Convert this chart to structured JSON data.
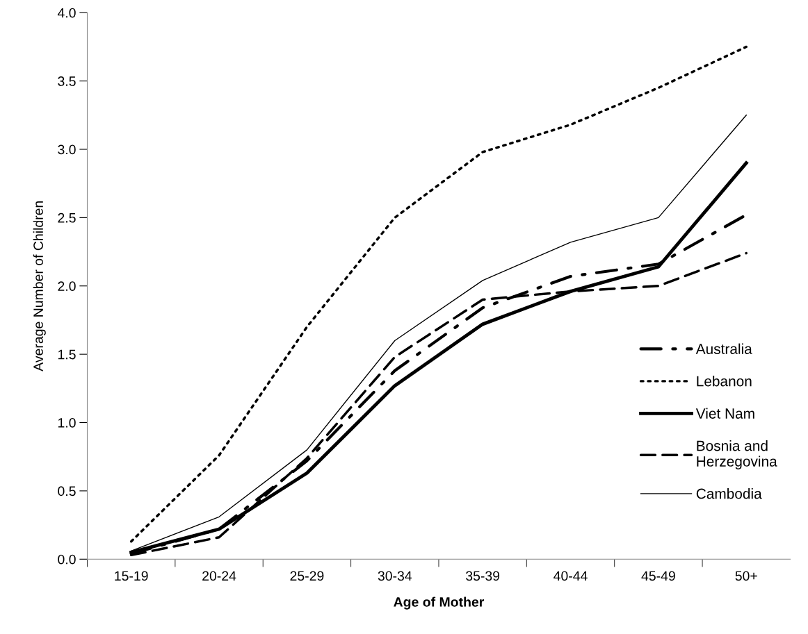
{
  "chart_data": {
    "type": "line",
    "xlabel": "Age of Mother",
    "ylabel": "Average Number of Children",
    "categories": [
      "15-19",
      "20-24",
      "25-29",
      "30-34",
      "35-39",
      "40-44",
      "45-49",
      "50+"
    ],
    "series": [
      {
        "name": "Australia",
        "color": "#000000",
        "line_style": "dashdot",
        "values": [
          0.04,
          0.22,
          0.72,
          1.38,
          1.84,
          2.07,
          2.16,
          2.52
        ]
      },
      {
        "name": "Lebanon",
        "color": "#000000",
        "line_style": "dotted",
        "values": [
          0.13,
          0.76,
          1.7,
          2.5,
          2.98,
          3.18,
          3.45,
          3.75
        ]
      },
      {
        "name": "Viet Nam",
        "color": "#000000",
        "line_style": "solid",
        "values": [
          0.05,
          0.22,
          0.63,
          1.27,
          1.72,
          1.96,
          2.14,
          2.9
        ]
      },
      {
        "name": "Bosnia and\nHerzegovina",
        "color": "#000000",
        "line_style": "dashed",
        "values": [
          0.03,
          0.16,
          0.74,
          1.48,
          1.9,
          1.96,
          2.0,
          2.24
        ]
      },
      {
        "name": "Cambodia",
        "color": "#000000",
        "line_style": "solid",
        "values": [
          0.06,
          0.31,
          0.8,
          1.6,
          2.04,
          2.32,
          2.5,
          3.25
        ]
      }
    ],
    "ylim": [
      0,
      4
    ],
    "yticks": [
      {
        "value": 0,
        "label": "0.0"
      },
      {
        "value": 0.5,
        "label": "0.5"
      },
      {
        "value": 1,
        "label": "1.0"
      },
      {
        "value": 1.5,
        "label": "1.5"
      },
      {
        "value": 2,
        "label": "2.0"
      },
      {
        "value": 2.5,
        "label": "2.5"
      },
      {
        "value": 3,
        "label": "3.0"
      },
      {
        "value": 3.5,
        "label": "3.5"
      },
      {
        "value": 4,
        "label": "4.0"
      }
    ],
    "grid": false,
    "legend": "right",
    "marker": "none"
  }
}
